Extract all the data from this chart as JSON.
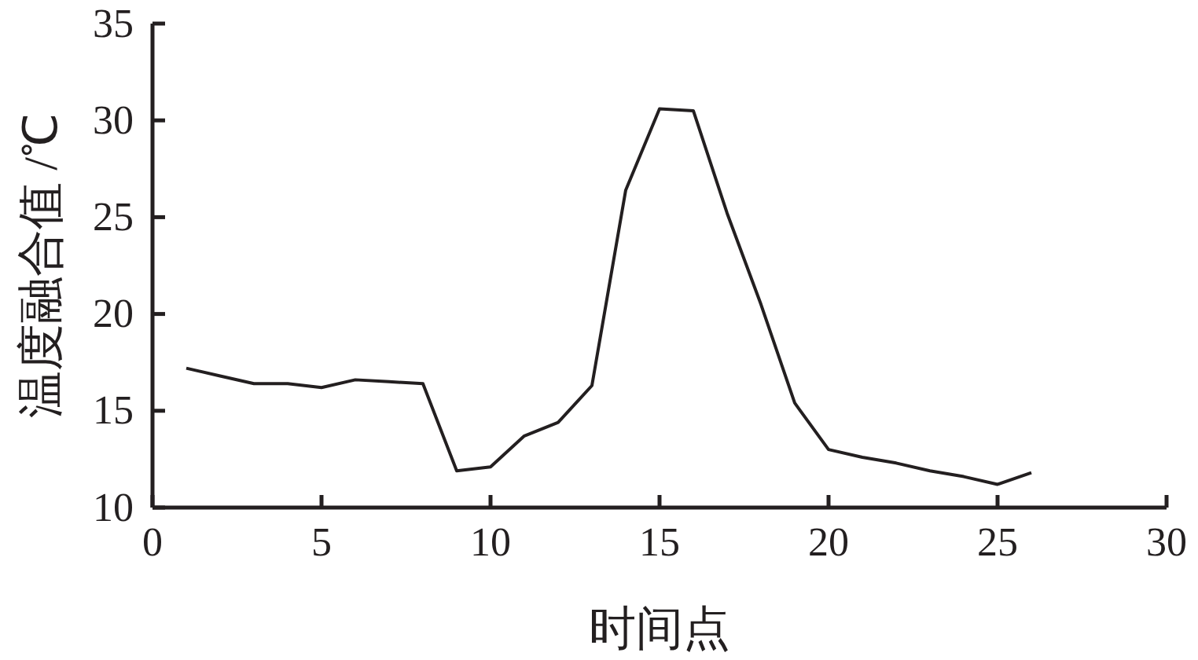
{
  "chart_data": {
    "type": "line",
    "xlabel": "时间点",
    "ylabel": "温度融合值 /℃",
    "x": [
      1,
      2,
      3,
      4,
      5,
      6,
      7,
      8,
      9,
      10,
      11,
      12,
      13,
      14,
      15,
      16,
      17,
      18,
      19,
      20,
      21,
      22,
      23,
      24,
      25,
      26
    ],
    "series": [
      {
        "color": "#231f20",
        "values": [
          17.2,
          16.8,
          16.4,
          16.4,
          16.2,
          16.6,
          16.5,
          16.4,
          11.9,
          12.1,
          13.7,
          14.4,
          16.3,
          26.4,
          30.6,
          30.5,
          25.2,
          20.5,
          15.4,
          13.0,
          12.6,
          12.3,
          11.9,
          11.6,
          11.2,
          11.8
        ]
      }
    ],
    "xlim": [
      0,
      30
    ],
    "xticks": [
      0,
      5,
      10,
      15,
      20,
      25,
      30
    ],
    "ylim": [
      10,
      35
    ],
    "yticks": [
      10,
      15,
      20,
      25,
      30,
      35
    ],
    "marker": "none",
    "line_style": "solid"
  }
}
